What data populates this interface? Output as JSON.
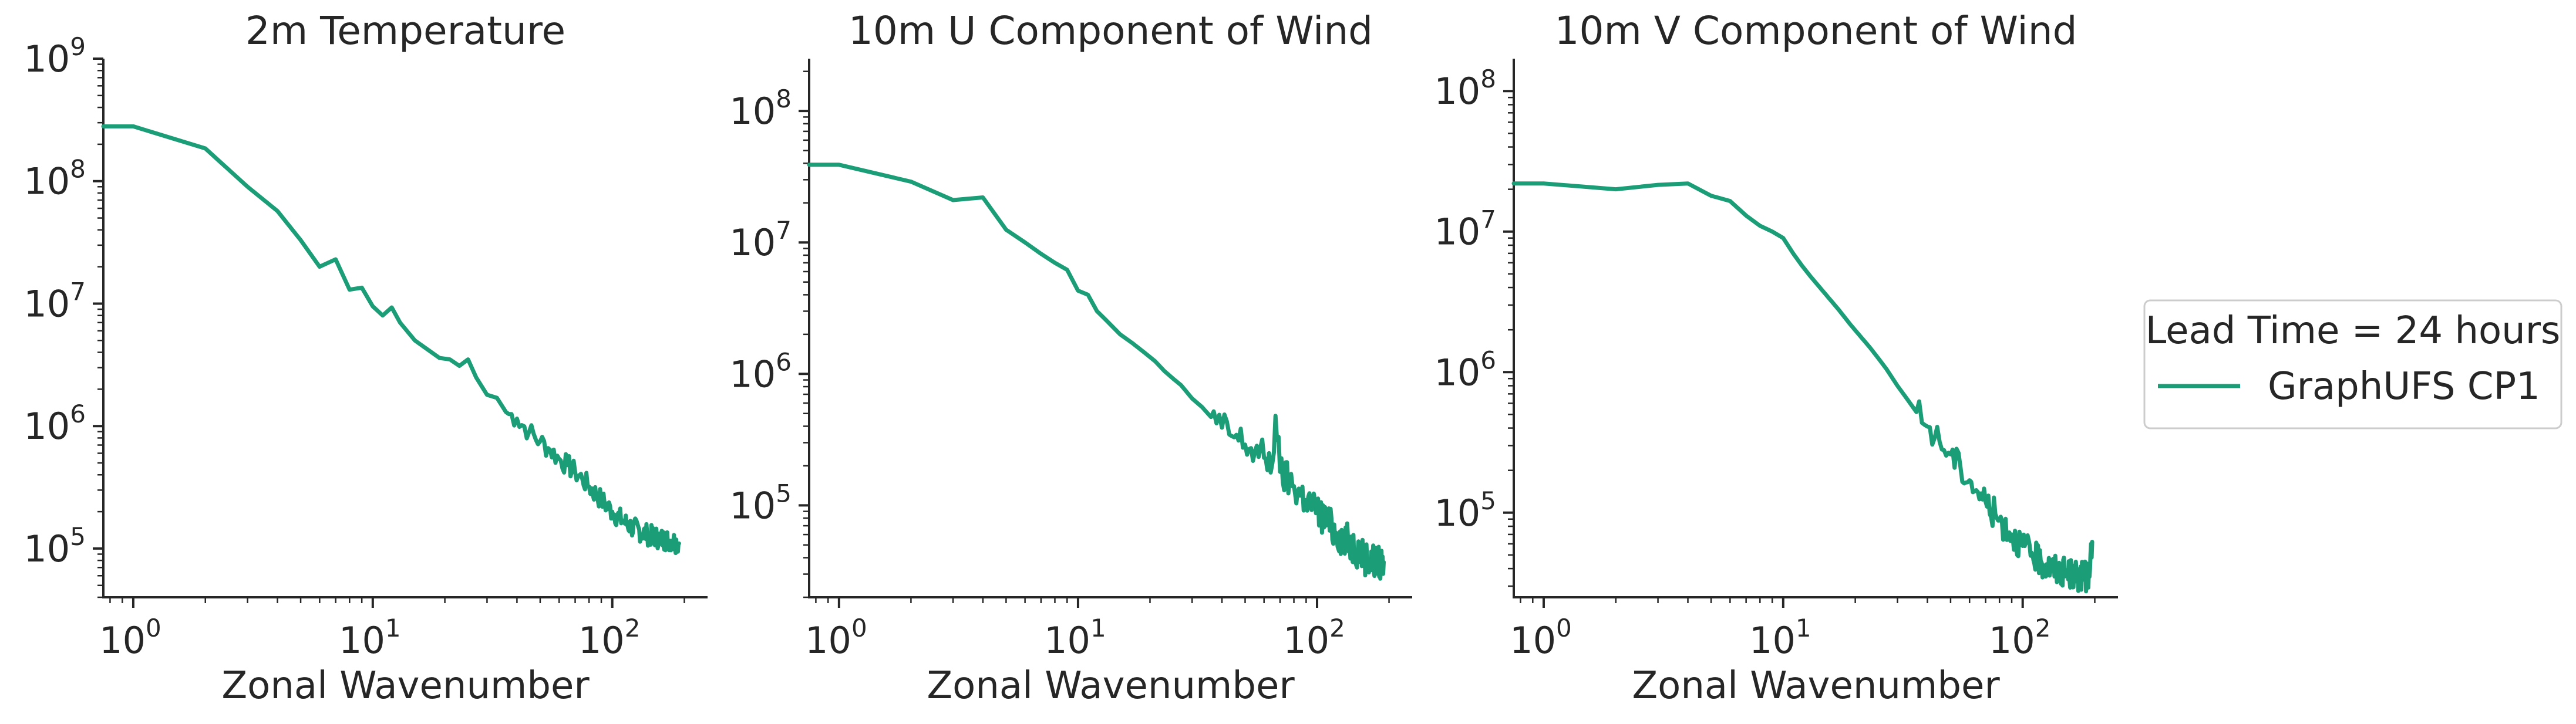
{
  "colors": {
    "series": "#1b9e77",
    "text": "#262626",
    "axis": "#262626",
    "legend_border": "#cccccc"
  },
  "legend": {
    "title": "Lead Time = 24 hours",
    "placement": "right",
    "entries": [
      "GraphUFS CP1"
    ]
  },
  "chart_data": [
    {
      "type": "line",
      "title": "2m Temperature",
      "xlabel": "Zonal Wavenumber",
      "ylabel": "",
      "xscale": "log",
      "yscale": "log",
      "xlim": [
        0.75,
        250
      ],
      "ylim": [
        40000,
        1000000000
      ],
      "xticks": [
        {
          "base": "10",
          "exp": "0",
          "value": 1
        },
        {
          "base": "10",
          "exp": "1",
          "value": 10
        },
        {
          "base": "10",
          "exp": "2",
          "value": 100
        }
      ],
      "yticks": [
        {
          "base": "10",
          "exp": "5",
          "value": 100000
        },
        {
          "base": "10",
          "exp": "6",
          "value": 1000000
        },
        {
          "base": "10",
          "exp": "7",
          "value": 10000000
        },
        {
          "base": "10",
          "exp": "8",
          "value": 100000000
        },
        {
          "base": "10",
          "exp": "9",
          "value": 1000000000
        }
      ],
      "grid": false,
      "series": [
        {
          "name": "GraphUFS CP1",
          "x": [
            0.75,
            1,
            2,
            3,
            4,
            5,
            6,
            7,
            8,
            9,
            10,
            11,
            12,
            13,
            15,
            17,
            19,
            21,
            23,
            25,
            27,
            30,
            33,
            36,
            40,
            45,
            50,
            55,
            60,
            65,
            70,
            75,
            80,
            90,
            100,
            110,
            120,
            140,
            160,
            180,
            190
          ],
          "y": [
            280000000,
            280000000,
            185000000,
            90000000,
            57000000,
            33000000,
            20000000,
            23000000,
            13000000,
            13500000,
            9500000,
            8000000,
            9300000,
            7000000,
            5000000,
            4200000,
            3600000,
            3500000,
            3100000,
            3500000,
            2500000,
            1800000,
            1700000,
            1300000,
            1150000,
            900000,
            750000,
            640000,
            540000,
            480000,
            420000,
            370000,
            320000,
            250000,
            200000,
            170000,
            150000,
            130000,
            120000,
            115000,
            110000
          ],
          "noisy_from": 35,
          "noise_amp": 0.18
        }
      ]
    },
    {
      "type": "line",
      "title": "10m U Component of Wind",
      "xlabel": "Zonal Wavenumber",
      "ylabel": "",
      "xscale": "log",
      "yscale": "log",
      "xlim": [
        0.75,
        250
      ],
      "ylim": [
        20000,
        250000000
      ],
      "xticks": [
        {
          "base": "10",
          "exp": "0",
          "value": 1
        },
        {
          "base": "10",
          "exp": "1",
          "value": 10
        },
        {
          "base": "10",
          "exp": "2",
          "value": 100
        }
      ],
      "yticks": [
        {
          "base": "10",
          "exp": "5",
          "value": 100000
        },
        {
          "base": "10",
          "exp": "6",
          "value": 1000000
        },
        {
          "base": "10",
          "exp": "7",
          "value": 10000000
        },
        {
          "base": "10",
          "exp": "8",
          "value": 100000000
        }
      ],
      "grid": false,
      "series": [
        {
          "name": "GraphUFS CP1",
          "x": [
            0.75,
            1,
            2,
            3,
            4,
            5,
            6,
            7,
            8,
            9,
            10,
            11,
            12,
            13,
            15,
            17,
            19,
            21,
            23,
            25,
            27,
            30,
            33,
            36,
            40,
            45,
            50,
            55,
            60,
            65,
            67,
            70,
            80,
            90,
            100,
            110,
            120,
            140,
            150,
            160,
            180,
            190
          ],
          "y": [
            39000000,
            39000000,
            29000000,
            21000000,
            22000000,
            12500000,
            10000000,
            8200000,
            7000000,
            6200000,
            4300000,
            4000000,
            3000000,
            2600000,
            2000000,
            1700000,
            1450000,
            1250000,
            1050000,
            920000,
            820000,
            650000,
            560000,
            470000,
            390000,
            330000,
            290000,
            260000,
            230000,
            210000,
            480000,
            180000,
            140000,
            110000,
            90000,
            75000,
            62000,
            50000,
            45000,
            40000,
            36000,
            37000
          ],
          "noisy_from": 35,
          "noise_amp": 0.28
        }
      ]
    },
    {
      "type": "line",
      "title": "10m V Component of Wind",
      "xlabel": "Zonal Wavenumber",
      "ylabel": "",
      "xscale": "log",
      "yscale": "log",
      "xlim": [
        0.75,
        250
      ],
      "ylim": [
        25000,
        170000000
      ],
      "xticks": [
        {
          "base": "10",
          "exp": "0",
          "value": 1
        },
        {
          "base": "10",
          "exp": "1",
          "value": 10
        },
        {
          "base": "10",
          "exp": "2",
          "value": 100
        }
      ],
      "yticks": [
        {
          "base": "10",
          "exp": "5",
          "value": 100000
        },
        {
          "base": "10",
          "exp": "6",
          "value": 1000000
        },
        {
          "base": "10",
          "exp": "7",
          "value": 10000000
        },
        {
          "base": "10",
          "exp": "8",
          "value": 100000000
        }
      ],
      "grid": false,
      "series": [
        {
          "name": "GraphUFS CP1",
          "x": [
            0.75,
            1,
            2,
            3,
            4,
            5,
            6,
            7,
            8,
            9,
            10,
            11,
            12,
            13,
            15,
            17,
            19,
            21,
            23,
            25,
            27,
            30,
            33,
            36,
            40,
            45,
            50,
            55,
            60,
            65,
            70,
            80,
            90,
            100,
            110,
            120,
            140,
            160,
            180,
            190,
            195
          ],
          "y": [
            22000000,
            22000000,
            20000000,
            21500000,
            22000000,
            18000000,
            16500000,
            13000000,
            11000000,
            10000000,
            9000000,
            7000000,
            5700000,
            4800000,
            3600000,
            2800000,
            2200000,
            1800000,
            1500000,
            1250000,
            1050000,
            800000,
            640000,
            520000,
            410000,
            320000,
            260000,
            210000,
            170000,
            140000,
            120000,
            88000,
            70000,
            58000,
            50000,
            44000,
            39000,
            36000,
            35000,
            35000,
            62000
          ],
          "noisy_from": 35,
          "noise_amp": 0.22
        }
      ]
    }
  ]
}
